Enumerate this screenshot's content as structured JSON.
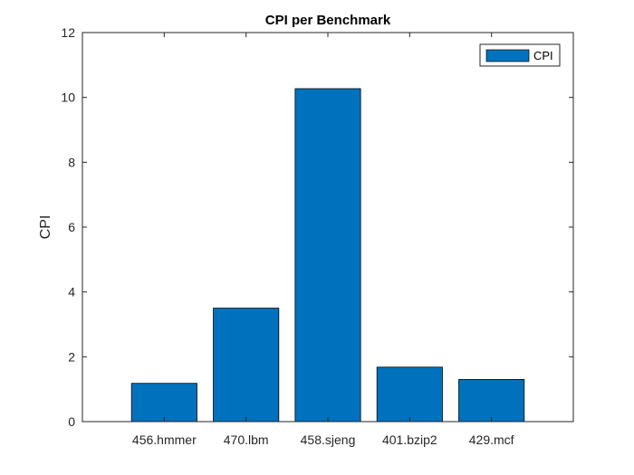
{
  "chart_data": {
    "type": "bar",
    "title": "CPI per Benchmark",
    "xlabel": "",
    "ylabel": "CPI",
    "categories": [
      "456.hmmer",
      "470.lbm",
      "458.sjeng",
      "401.bzip2",
      "429.mcf"
    ],
    "series": [
      {
        "name": "CPI",
        "values": [
          1.18,
          3.5,
          10.27,
          1.68,
          1.3
        ]
      }
    ],
    "ylim": [
      0,
      12
    ],
    "yticks": [
      "0",
      "2",
      "4",
      "6",
      "8",
      "10",
      "12"
    ],
    "bar_color": "#0072BD",
    "grid": false,
    "legend_position": "top-right"
  }
}
